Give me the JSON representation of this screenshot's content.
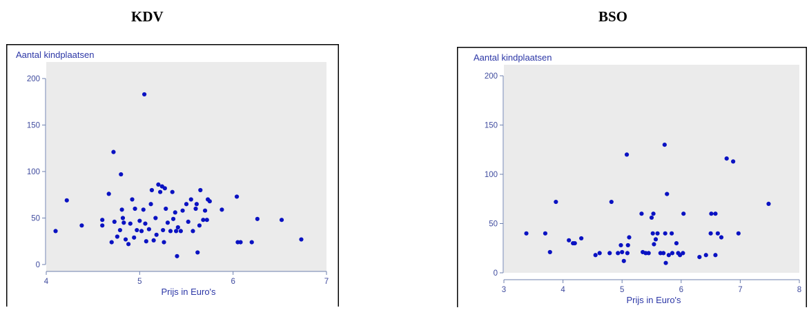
{
  "chart_data": [
    {
      "type": "scatter",
      "title": "KDV",
      "ylabel": "Aantal kindplaatsen",
      "xlabel": "Prijs in Euro's",
      "xlim": [
        4,
        7
      ],
      "ylim": [
        0,
        200
      ],
      "xticks": [
        4,
        5,
        6,
        7
      ],
      "yticks": [
        0,
        50,
        100,
        150,
        200
      ],
      "grid": false,
      "colors": {
        "point": "#0a12c2",
        "plot_background": "#ebebeb",
        "axis_text": "#3f4b9e"
      },
      "points": [
        [
          4.1,
          36
        ],
        [
          4.22,
          69
        ],
        [
          4.38,
          42
        ],
        [
          4.6,
          48
        ],
        [
          4.6,
          42
        ],
        [
          4.67,
          76
        ],
        [
          4.7,
          24
        ],
        [
          4.72,
          121
        ],
        [
          4.73,
          46
        ],
        [
          4.76,
          30
        ],
        [
          4.79,
          37
        ],
        [
          4.8,
          97
        ],
        [
          4.81,
          59
        ],
        [
          4.82,
          50
        ],
        [
          4.83,
          45
        ],
        [
          4.85,
          27
        ],
        [
          4.88,
          22
        ],
        [
          4.9,
          44
        ],
        [
          4.92,
          70
        ],
        [
          4.94,
          29
        ],
        [
          4.95,
          60
        ],
        [
          4.97,
          37
        ],
        [
          5.0,
          47
        ],
        [
          5.02,
          36
        ],
        [
          5.04,
          59
        ],
        [
          5.05,
          183
        ],
        [
          5.06,
          44
        ],
        [
          5.07,
          25
        ],
        [
          5.1,
          38
        ],
        [
          5.12,
          65
        ],
        [
          5.13,
          80
        ],
        [
          5.15,
          26
        ],
        [
          5.17,
          50
        ],
        [
          5.18,
          32
        ],
        [
          5.2,
          86
        ],
        [
          5.22,
          78
        ],
        [
          5.24,
          84
        ],
        [
          5.25,
          37
        ],
        [
          5.26,
          24
        ],
        [
          5.27,
          82
        ],
        [
          5.28,
          60
        ],
        [
          5.3,
          45
        ],
        [
          5.33,
          36
        ],
        [
          5.35,
          78
        ],
        [
          5.36,
          49
        ],
        [
          5.38,
          56
        ],
        [
          5.39,
          36
        ],
        [
          5.4,
          9
        ],
        [
          5.41,
          40
        ],
        [
          5.44,
          36
        ],
        [
          5.46,
          58
        ],
        [
          5.5,
          65
        ],
        [
          5.52,
          46
        ],
        [
          5.55,
          70
        ],
        [
          5.57,
          36
        ],
        [
          5.6,
          60
        ],
        [
          5.61,
          65
        ],
        [
          5.62,
          13
        ],
        [
          5.64,
          42
        ],
        [
          5.65,
          80
        ],
        [
          5.68,
          48
        ],
        [
          5.7,
          58
        ],
        [
          5.72,
          48
        ],
        [
          5.73,
          70
        ],
        [
          5.75,
          68
        ],
        [
          5.88,
          59
        ],
        [
          6.04,
          73
        ],
        [
          6.05,
          24
        ],
        [
          6.08,
          24
        ],
        [
          6.2,
          24
        ],
        [
          6.26,
          49
        ],
        [
          6.52,
          48
        ],
        [
          6.73,
          27
        ]
      ]
    },
    {
      "type": "scatter",
      "title": "BSO",
      "ylabel": "Aantal kindplaatsen",
      "xlabel": "Prijs in Euro's",
      "xlim": [
        3,
        8
      ],
      "ylim": [
        0,
        200
      ],
      "xticks": [
        3,
        4,
        5,
        6,
        7,
        8
      ],
      "yticks": [
        0,
        50,
        100,
        150,
        200
      ],
      "grid": false,
      "colors": {
        "point": "#0a12c2",
        "plot_background": "#ebebeb",
        "axis_text": "#3f4b9e"
      },
      "points": [
        [
          3.38,
          40
        ],
        [
          3.7,
          40
        ],
        [
          3.78,
          21
        ],
        [
          3.88,
          72
        ],
        [
          4.1,
          33
        ],
        [
          4.17,
          30
        ],
        [
          4.2,
          30
        ],
        [
          4.31,
          35
        ],
        [
          4.55,
          18
        ],
        [
          4.62,
          20
        ],
        [
          4.79,
          20
        ],
        [
          4.82,
          72
        ],
        [
          4.93,
          20
        ],
        [
          4.98,
          28
        ],
        [
          5.0,
          21
        ],
        [
          5.03,
          12
        ],
        [
          5.08,
          120
        ],
        [
          5.09,
          20
        ],
        [
          5.1,
          28
        ],
        [
          5.12,
          36
        ],
        [
          5.33,
          60
        ],
        [
          5.35,
          21
        ],
        [
          5.4,
          20
        ],
        [
          5.45,
          20
        ],
        [
          5.5,
          56
        ],
        [
          5.52,
          40
        ],
        [
          5.53,
          60
        ],
        [
          5.54,
          29
        ],
        [
          5.57,
          34
        ],
        [
          5.6,
          40
        ],
        [
          5.65,
          20
        ],
        [
          5.7,
          20
        ],
        [
          5.72,
          130
        ],
        [
          5.73,
          40
        ],
        [
          5.74,
          10
        ],
        [
          5.76,
          80
        ],
        [
          5.79,
          18
        ],
        [
          5.84,
          40
        ],
        [
          5.85,
          20
        ],
        [
          5.92,
          30
        ],
        [
          5.95,
          20
        ],
        [
          5.98,
          18
        ],
        [
          6.03,
          20
        ],
        [
          6.04,
          60
        ],
        [
          6.31,
          16
        ],
        [
          6.42,
          18
        ],
        [
          6.5,
          40
        ],
        [
          6.51,
          60
        ],
        [
          6.58,
          60
        ],
        [
          6.58,
          18
        ],
        [
          6.62,
          40
        ],
        [
          6.68,
          36
        ],
        [
          6.77,
          116
        ],
        [
          6.88,
          113
        ],
        [
          6.97,
          40
        ],
        [
          7.48,
          70
        ]
      ]
    }
  ]
}
